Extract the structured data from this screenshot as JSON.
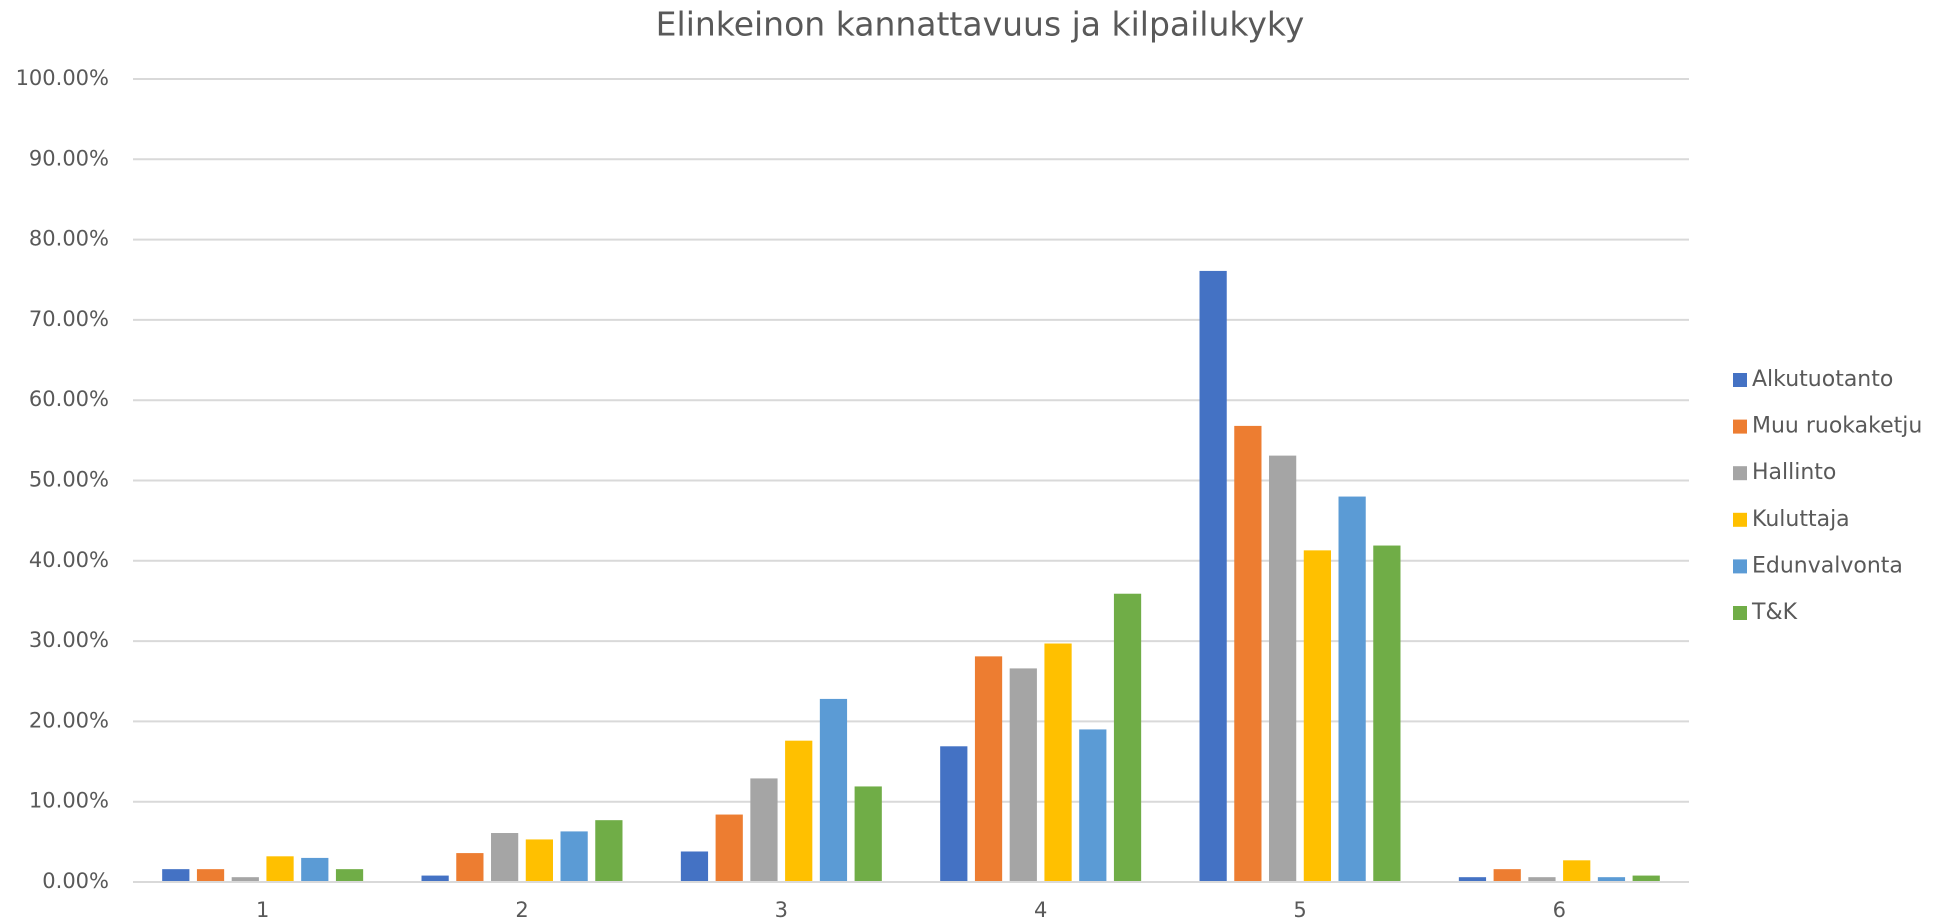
{
  "chart_data": {
    "type": "bar",
    "title": "Elinkeinon kannattavuus ja kilpailukyky",
    "categories": [
      "1",
      "2",
      "3",
      "4",
      "5",
      "6"
    ],
    "series": [
      {
        "name": "Alkutuotanto",
        "color": "#4472c4",
        "values": [
          1.6,
          0.8,
          3.8,
          16.9,
          76.1,
          0.6
        ]
      },
      {
        "name": "Muu ruokaketju",
        "color": "#ed7d31",
        "values": [
          1.6,
          3.6,
          8.4,
          28.1,
          56.8,
          1.6
        ]
      },
      {
        "name": "Hallinto",
        "color": "#a5a5a5",
        "values": [
          0.6,
          6.1,
          12.9,
          26.6,
          53.1,
          0.6
        ]
      },
      {
        "name": "Kuluttaja",
        "color": "#ffc000",
        "values": [
          3.2,
          5.3,
          17.6,
          29.7,
          41.3,
          2.7
        ]
      },
      {
        "name": "Edunvalvonta",
        "color": "#5b9bd5",
        "values": [
          3.0,
          6.3,
          22.8,
          19.0,
          48.0,
          0.6
        ]
      },
      {
        "name": "T&K",
        "color": "#70ad47",
        "values": [
          1.6,
          7.7,
          11.9,
          35.9,
          41.9,
          0.8
        ]
      }
    ],
    "ylim": [
      0,
      100
    ],
    "yticks": [
      {
        "value": 0,
        "label": "0.00%"
      },
      {
        "value": 10,
        "label": "10.00%"
      },
      {
        "value": 20,
        "label": "20.00%"
      },
      {
        "value": 30,
        "label": "30.00%"
      },
      {
        "value": 40,
        "label": "40.00%"
      },
      {
        "value": 50,
        "label": "50.00%"
      },
      {
        "value": 60,
        "label": "60.00%"
      },
      {
        "value": 70,
        "label": "70.00%"
      },
      {
        "value": 80,
        "label": "80.00%"
      },
      {
        "value": 90,
        "label": "90.00%"
      },
      {
        "value": 100,
        "label": "100.00%"
      }
    ],
    "grid": true,
    "legend": "right"
  }
}
